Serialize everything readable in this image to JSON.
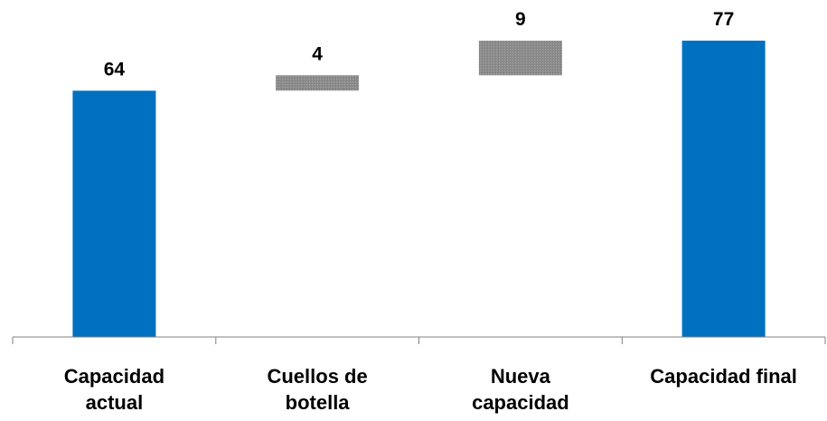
{
  "chart_data": {
    "type": "bar",
    "subtype": "waterfall",
    "title": "",
    "xlabel": "",
    "ylabel": "",
    "categories": [
      "Capacidad actual",
      "Cuellos de botella",
      "Nueva capacidad",
      "Capacidad final"
    ],
    "category_labels": [
      "Capacidad\nactual",
      "Cuellos de\nbotella",
      "Nueva\ncapacidad",
      "Capacidad final"
    ],
    "values": [
      64,
      4,
      9,
      77
    ],
    "bar_kinds": [
      "total",
      "increment",
      "increment",
      "total"
    ],
    "data_labels": [
      "64",
      "4",
      "9",
      "77"
    ],
    "ylim": [
      0,
      77
    ],
    "grid": false,
    "legend": "none",
    "colors": {
      "total": "#0070C0",
      "increment": "#8C8C8C",
      "axis": "#808080",
      "text": "#000000"
    }
  }
}
